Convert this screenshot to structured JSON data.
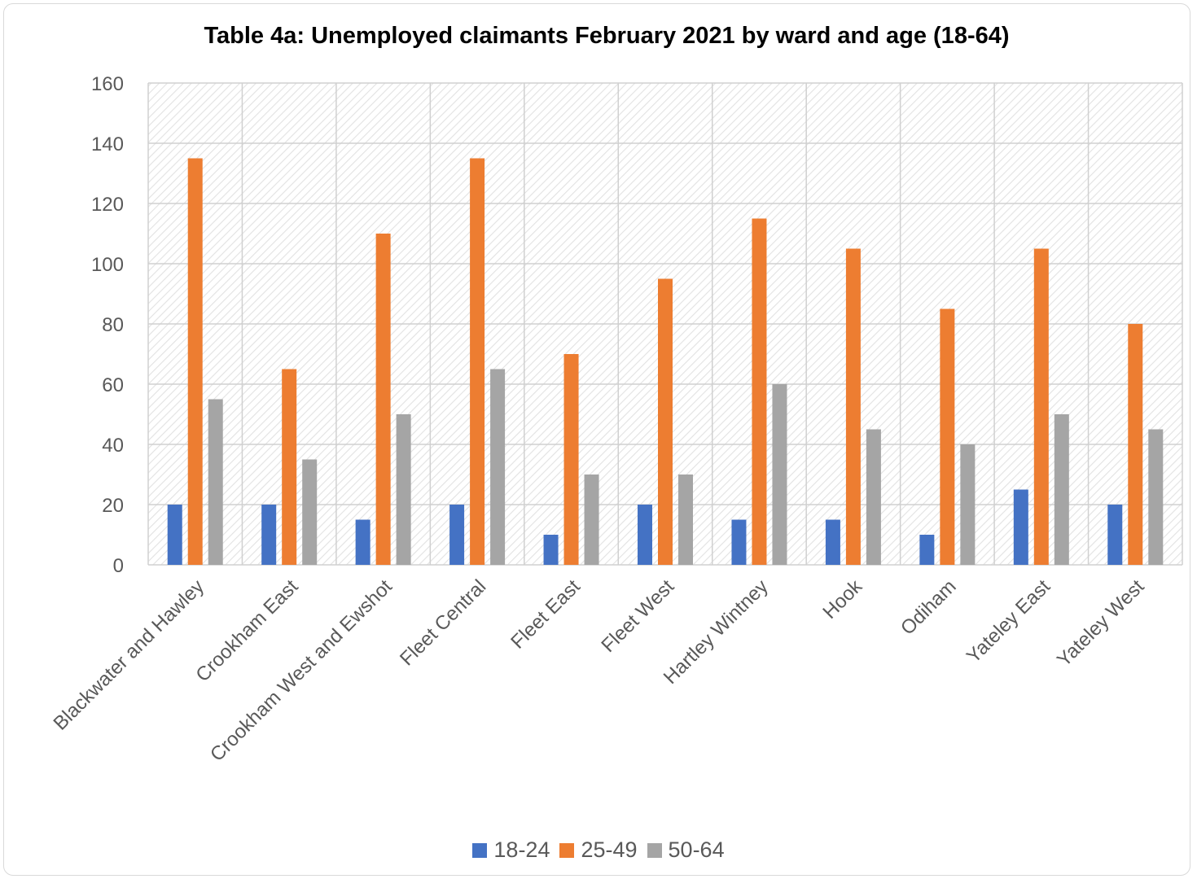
{
  "chart_data": {
    "type": "bar",
    "title": "Table 4a: Unemployed claimants February 2021 by ward and age (18-64)",
    "categories": [
      "Blackwater and Hawley",
      "Crookham East",
      "Crookham West and Ewshot",
      "Fleet Central",
      "Fleet East",
      "Fleet West",
      "Hartley Wintney",
      "Hook",
      "Odiham",
      "Yateley East",
      "Yateley West"
    ],
    "series": [
      {
        "name": "18-24",
        "color": "#4472c4",
        "values": [
          20,
          20,
          15,
          20,
          10,
          20,
          15,
          15,
          10,
          25,
          20
        ]
      },
      {
        "name": "25-49",
        "color": "#ed7d31",
        "values": [
          135,
          65,
          110,
          135,
          70,
          95,
          115,
          105,
          85,
          105,
          80
        ]
      },
      {
        "name": "50-64",
        "color": "#a5a5a5",
        "values": [
          55,
          35,
          50,
          65,
          30,
          30,
          60,
          45,
          40,
          50,
          45
        ]
      }
    ],
    "ylim": [
      0,
      160
    ],
    "yticks": [
      "0",
      "20",
      "40",
      "60",
      "80",
      "100",
      "120",
      "140",
      "160"
    ],
    "grid": true,
    "legend_position": "bottom"
  }
}
